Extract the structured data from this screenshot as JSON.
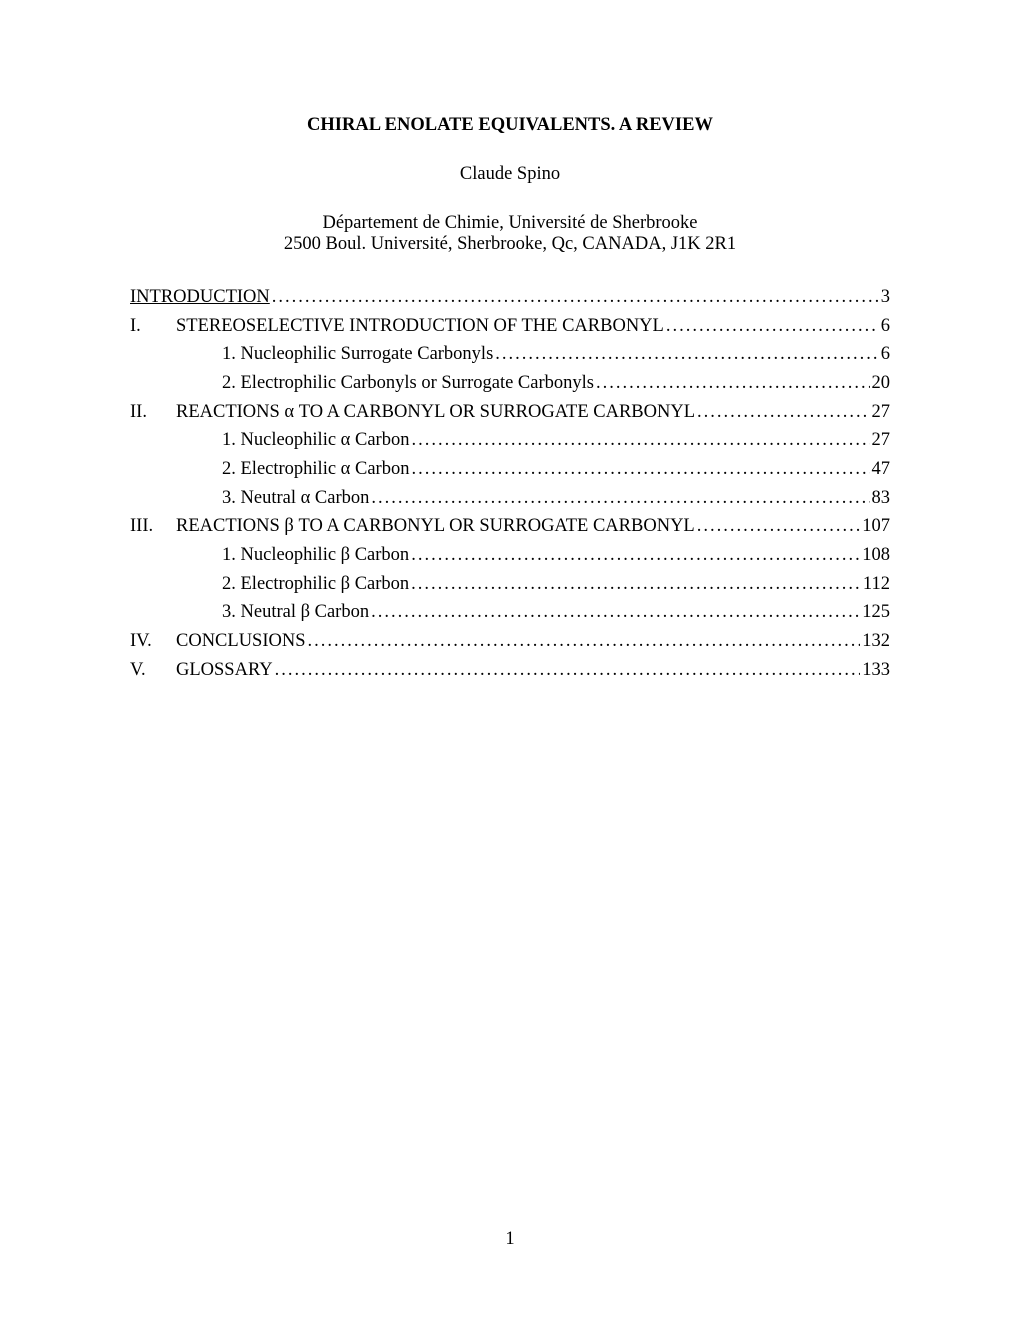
{
  "title": "CHIRAL ENOLATE EQUIVALENTS. A REVIEW",
  "author": "Claude Spino",
  "affiliation": {
    "line1": "Département de Chimie, Université de Sherbrooke",
    "line2": "2500 Boul. Université, Sherbrooke, Qc, CANADA, J1K 2R1"
  },
  "toc": {
    "intro": {
      "label": "INTRODUCTION",
      "page": "3"
    },
    "s1": {
      "num": "I.",
      "label": "STEREOSELECTIVE INTRODUCTION OF THE CARBONYL",
      "page": "6"
    },
    "s1_1": {
      "label": "1. Nucleophilic Surrogate Carbonyls",
      "page": "6"
    },
    "s1_2": {
      "label": "2. Electrophilic Carbonyls or Surrogate Carbonyls",
      "page": "20"
    },
    "s2": {
      "num": "II.",
      "label": "REACTIONS α TO A CARBONYL OR SURROGATE CARBONYL",
      "page": "27"
    },
    "s2_1": {
      "label": "1. Nucleophilic α Carbon",
      "page": "27"
    },
    "s2_2": {
      "label": "2. Electrophilic α Carbon",
      "page": "47"
    },
    "s2_3": {
      "label": "3. Neutral α Carbon",
      "page": "83"
    },
    "s3": {
      "num": "III.",
      "label": "REACTIONS β TO A CARBONYL OR SURROGATE CARBONYL",
      "page": "107"
    },
    "s3_1": {
      "label": "1. Nucleophilic β Carbon",
      "page": "108"
    },
    "s3_2": {
      "label": "2. Electrophilic β Carbon",
      "page": "112"
    },
    "s3_3": {
      "label": "3. Neutral β Carbon",
      "page": "125"
    },
    "s4": {
      "num": "IV.",
      "label": "CONCLUSIONS",
      "page": "132"
    },
    "s5": {
      "num": "V.",
      "label": "GLOSSARY",
      "page": "133"
    }
  },
  "pageNumber": "1"
}
